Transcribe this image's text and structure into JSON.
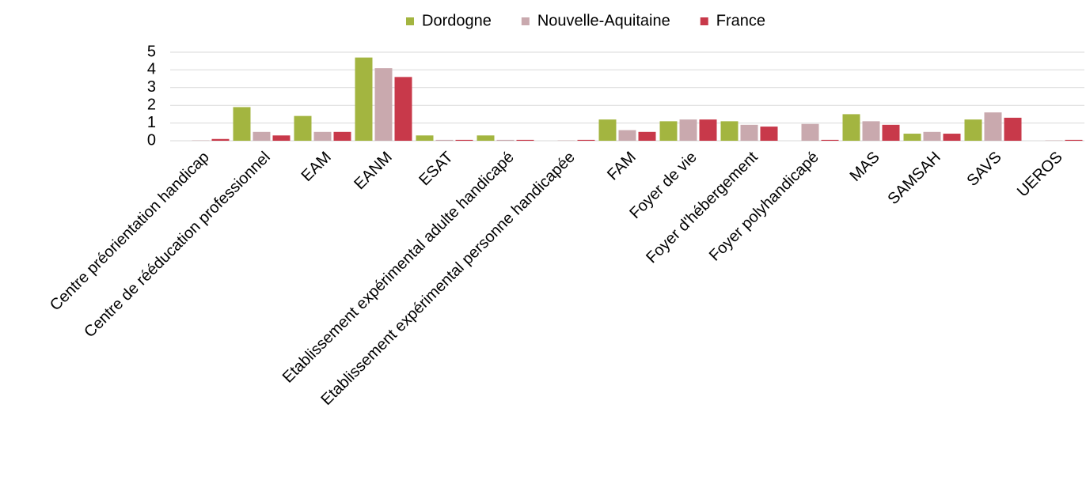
{
  "chart_data": {
    "type": "bar",
    "categories": [
      "Centre préorientation handicap",
      "Centre de rééducation professionnel",
      "EAM",
      "EANM",
      "ESAT",
      "Etablissement expérimental adulte handicapé",
      "Etablissement expérimental personne handicapée",
      "FAM",
      "Foyer de vie",
      "Foyer d'hébergement",
      "Foyer polyhandicapé",
      "MAS",
      "SAMSAH",
      "SAVS",
      "UEROS"
    ],
    "series": [
      {
        "name": "Dordogne",
        "color": "#a3b540",
        "values": [
          0,
          1.9,
          1.4,
          4.7,
          0.3,
          0.3,
          0,
          1.2,
          1.1,
          1.1,
          0,
          1.5,
          0.4,
          1.2,
          0
        ]
      },
      {
        "name": "Nouvelle-Aquitaine",
        "color": "#c9a9ae",
        "values": [
          0.02,
          0.5,
          0.5,
          4.1,
          0.05,
          0.05,
          0.02,
          0.6,
          1.2,
          0.9,
          0.95,
          1.1,
          0.5,
          1.6,
          0.02
        ]
      },
      {
        "name": "France",
        "color": "#c8394a",
        "values": [
          0.1,
          0.3,
          0.5,
          3.6,
          0.05,
          0.05,
          0.05,
          0.5,
          1.2,
          0.8,
          0.05,
          0.9,
          0.4,
          1.3,
          0.05
        ]
      }
    ],
    "ylim": [
      0,
      5
    ],
    "yticks": [
      0,
      1,
      2,
      3,
      4,
      5
    ],
    "grid": true,
    "legend": "top"
  }
}
